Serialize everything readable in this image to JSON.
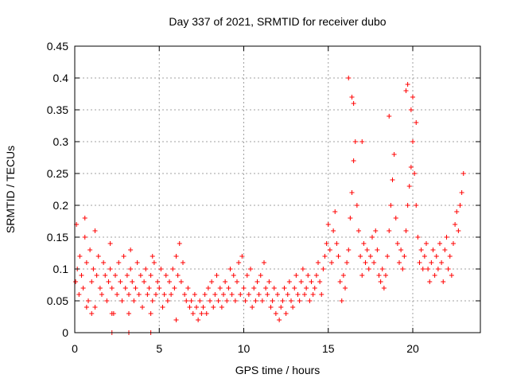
{
  "chart_data": {
    "type": "scatter",
    "title": "Day 337 of 2021, SRMTID for receiver dubo",
    "xlabel": "GPS time / hours",
    "ylabel": "SRMTID / TECUs",
    "xlim": [
      0,
      24
    ],
    "ylim": [
      0,
      0.45
    ],
    "x_ticks": [
      0,
      5,
      10,
      15,
      20
    ],
    "x_tick_labels": [
      "0",
      "5",
      "10",
      "15",
      "20"
    ],
    "y_ticks": [
      0,
      0.05,
      0.1,
      0.15,
      0.2,
      0.25,
      0.3,
      0.35,
      0.4,
      0.45
    ],
    "y_tick_labels": [
      "0",
      "0.05",
      "0.1",
      "0.15",
      "0.2",
      "0.25",
      "0.3",
      "0.35",
      "0.4",
      "0.45"
    ],
    "grid": true,
    "marker": "plus",
    "color": "#ff0000",
    "series": [
      {
        "name": "SRMTID",
        "x": [
          0.05,
          0.15,
          0.25,
          0.3,
          0.4,
          0.5,
          0.6,
          0.7,
          0.8,
          0.9,
          1.0,
          1.1,
          1.2,
          1.3,
          1.4,
          1.5,
          1.6,
          1.7,
          1.8,
          1.9,
          2.0,
          2.1,
          2.2,
          2.3,
          2.4,
          2.5,
          2.6,
          2.7,
          2.8,
          2.9,
          3.0,
          3.1,
          3.2,
          3.3,
          3.4,
          3.5,
          3.6,
          3.7,
          3.8,
          3.9,
          4.0,
          4.1,
          4.2,
          4.3,
          4.4,
          4.5,
          4.6,
          4.7,
          4.8,
          4.9,
          5.0,
          5.1,
          5.2,
          5.3,
          5.4,
          5.5,
          5.6,
          5.7,
          5.8,
          5.9,
          6.0,
          6.1,
          6.2,
          6.3,
          6.4,
          6.5,
          6.6,
          6.7,
          6.8,
          6.9,
          7.0,
          7.1,
          7.2,
          7.3,
          7.4,
          7.5,
          7.6,
          7.7,
          7.8,
          7.9,
          8.0,
          8.1,
          8.2,
          8.3,
          8.4,
          8.5,
          8.6,
          8.7,
          8.8,
          8.9,
          9.0,
          9.1,
          9.2,
          9.3,
          9.4,
          9.5,
          9.6,
          9.7,
          9.8,
          9.9,
          10.0,
          10.1,
          10.2,
          10.3,
          10.4,
          10.5,
          10.6,
          10.7,
          10.8,
          10.9,
          11.0,
          11.1,
          11.2,
          11.3,
          11.4,
          11.5,
          11.6,
          11.7,
          11.8,
          11.9,
          12.0,
          12.1,
          12.2,
          12.3,
          12.4,
          12.5,
          12.6,
          12.7,
          12.8,
          12.9,
          13.0,
          13.1,
          13.2,
          13.3,
          13.4,
          13.5,
          13.6,
          13.7,
          13.8,
          13.9,
          14.0,
          14.1,
          14.2,
          14.3,
          14.4,
          14.5,
          14.6,
          14.7,
          14.8,
          14.9,
          15.0,
          15.1,
          15.2,
          15.3,
          15.4,
          15.5,
          15.6,
          15.7,
          15.8,
          15.9,
          16.0,
          16.1,
          16.2,
          16.3,
          16.4,
          16.5,
          16.6,
          16.7,
          16.8,
          16.9,
          17.0,
          17.1,
          17.2,
          17.3,
          17.4,
          17.5,
          17.6,
          17.7,
          17.8,
          17.9,
          18.0,
          18.1,
          18.2,
          18.3,
          18.4,
          18.5,
          18.6,
          18.7,
          18.8,
          18.9,
          19.0,
          19.1,
          19.2,
          19.3,
          19.4,
          19.5,
          19.6,
          19.7,
          19.8,
          19.9,
          20.0,
          20.1,
          20.2,
          20.3,
          20.4,
          20.5,
          20.6,
          20.7,
          20.8,
          20.9,
          21.0,
          21.1,
          21.2,
          21.3,
          21.4,
          21.5,
          21.6,
          21.7,
          21.8,
          21.9,
          22.0,
          22.1,
          22.2,
          22.3,
          22.4,
          22.5,
          22.6,
          22.7,
          22.8,
          22.9,
          23.0,
          16.2,
          16.4,
          16.5,
          19.6,
          19.7,
          20.0,
          18.6,
          20.2,
          17.0,
          19.9,
          0.1,
          0.6,
          1.2,
          2.1,
          3.3,
          4.6,
          0.7,
          1.0,
          2.2,
          3.2,
          4.5,
          6.0,
          2.2,
          3.2,
          4.5
        ],
        "y": [
          0.08,
          0.1,
          0.06,
          0.12,
          0.09,
          0.07,
          0.15,
          0.11,
          0.05,
          0.13,
          0.08,
          0.1,
          0.04,
          0.09,
          0.12,
          0.07,
          0.06,
          0.11,
          0.09,
          0.05,
          0.08,
          0.1,
          0.07,
          0.03,
          0.09,
          0.06,
          0.11,
          0.08,
          0.05,
          0.12,
          0.07,
          0.09,
          0.06,
          0.1,
          0.08,
          0.05,
          0.07,
          0.11,
          0.06,
          0.09,
          0.04,
          0.08,
          0.1,
          0.06,
          0.07,
          0.09,
          0.05,
          0.11,
          0.06,
          0.08,
          0.07,
          0.1,
          0.04,
          0.06,
          0.09,
          0.05,
          0.08,
          0.06,
          0.1,
          0.07,
          0.12,
          0.09,
          0.14,
          0.08,
          0.11,
          0.06,
          0.05,
          0.07,
          0.04,
          0.05,
          0.03,
          0.06,
          0.04,
          0.02,
          0.05,
          0.03,
          0.04,
          0.06,
          0.03,
          0.07,
          0.05,
          0.08,
          0.04,
          0.06,
          0.09,
          0.05,
          0.07,
          0.04,
          0.06,
          0.08,
          0.05,
          0.07,
          0.1,
          0.06,
          0.09,
          0.05,
          0.08,
          0.11,
          0.06,
          0.12,
          0.07,
          0.05,
          0.09,
          0.06,
          0.1,
          0.04,
          0.07,
          0.05,
          0.08,
          0.06,
          0.09,
          0.05,
          0.11,
          0.07,
          0.06,
          0.08,
          0.04,
          0.05,
          0.07,
          0.03,
          0.06,
          0.02,
          0.04,
          0.05,
          0.07,
          0.03,
          0.06,
          0.08,
          0.05,
          0.04,
          0.07,
          0.09,
          0.06,
          0.05,
          0.08,
          0.1,
          0.06,
          0.07,
          0.09,
          0.05,
          0.08,
          0.06,
          0.07,
          0.09,
          0.11,
          0.08,
          0.06,
          0.1,
          0.12,
          0.14,
          0.17,
          0.13,
          0.11,
          0.16,
          0.19,
          0.14,
          0.12,
          0.08,
          0.05,
          0.09,
          0.07,
          0.11,
          0.13,
          0.18,
          0.22,
          0.27,
          0.3,
          0.2,
          0.16,
          0.12,
          0.09,
          0.14,
          0.11,
          0.13,
          0.1,
          0.12,
          0.15,
          0.11,
          0.16,
          0.13,
          0.09,
          0.08,
          0.1,
          0.07,
          0.09,
          0.12,
          0.16,
          0.2,
          0.24,
          0.28,
          0.18,
          0.14,
          0.11,
          0.13,
          0.1,
          0.12,
          0.16,
          0.2,
          0.23,
          0.26,
          0.3,
          0.25,
          0.2,
          0.15,
          0.11,
          0.13,
          0.1,
          0.12,
          0.14,
          0.1,
          0.08,
          0.11,
          0.13,
          0.09,
          0.12,
          0.1,
          0.14,
          0.11,
          0.08,
          0.13,
          0.15,
          0.1,
          0.12,
          0.09,
          0.14,
          0.17,
          0.19,
          0.16,
          0.2,
          0.22,
          0.25,
          0.4,
          0.37,
          0.36,
          0.38,
          0.39,
          0.37,
          0.34,
          0.33,
          0.3,
          0.35,
          0.17,
          0.18,
          0.16,
          0.14,
          0.13,
          0.12,
          0.04,
          0.03,
          0.03,
          0.03,
          0.03,
          0.02,
          0.0,
          0.0,
          0.0
        ]
      }
    ]
  }
}
